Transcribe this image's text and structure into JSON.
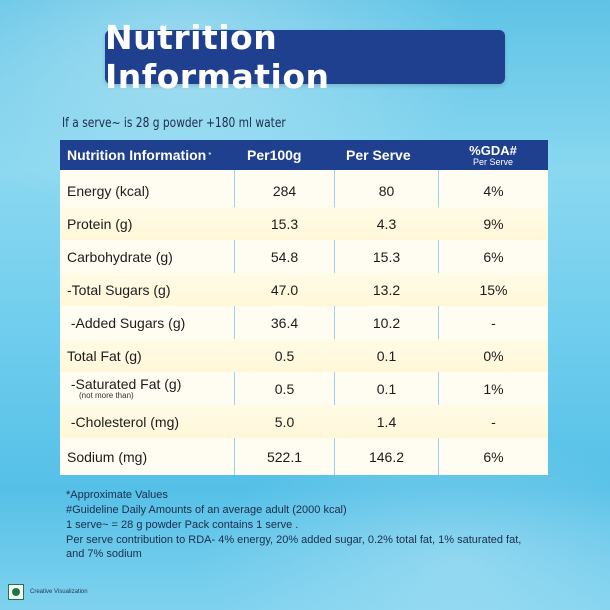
{
  "title": "Nutrition Information",
  "serve_note": "If a serve~ is 28 g powder +180 ml water",
  "table": {
    "headers": {
      "col1": "Nutrition Information",
      "col1_mark": "*",
      "col2": "Per100g",
      "col3": "Per Serve",
      "col4": "%GDA#",
      "col4_sub": "Per Serve"
    },
    "rows": [
      {
        "label": "Energy (kcal)",
        "per100g": "284",
        "per_serve": "80",
        "gda": "4%"
      },
      {
        "label": "Protein (g)",
        "per100g": "15.3",
        "per_serve": "4.3",
        "gda": "9%"
      },
      {
        "label": "Carbohydrate (g)",
        "per100g": "54.8",
        "per_serve": "15.3",
        "gda": "6%"
      },
      {
        "label": "-Total Sugars (g)",
        "per100g": "47.0",
        "per_serve": "13.2",
        "gda": "15%"
      },
      {
        "label": " -Added Sugars (g)",
        "per100g": "36.4",
        "per_serve": "10.2",
        "gda": "-"
      },
      {
        "label": "Total Fat (g)",
        "per100g": "0.5",
        "per_serve": "0.1",
        "gda": "0%"
      },
      {
        "label": " -Saturated Fat (g)",
        "sublabel": "(not more than)",
        "per100g": "0.5",
        "per_serve": "0.1",
        "gda": "1%"
      },
      {
        "label": " -Cholesterol (mg)",
        "per100g": "5.0",
        "per_serve": "1.4",
        "gda": "-"
      },
      {
        "label": "Sodium (mg)",
        "per100g": "522.1",
        "per_serve": "146.2",
        "gda": "6%"
      }
    ]
  },
  "notes": [
    "*Approximate Values",
    "#Guideline Daily Amounts of an average adult (2000 kcal)",
    "1 serve~ = 28 g powder Pack contains 1 serve .",
    "Per serve contribution to RDA- 4% energy, 20% added sugar, 0.2% total fat, 1% saturated fat,",
    "and 7% sodium"
  ],
  "logo_text": "Creative Visualization",
  "colors": {
    "header_blue": "#1f3f8f",
    "veg_mark_green": "#1d7a3c"
  }
}
